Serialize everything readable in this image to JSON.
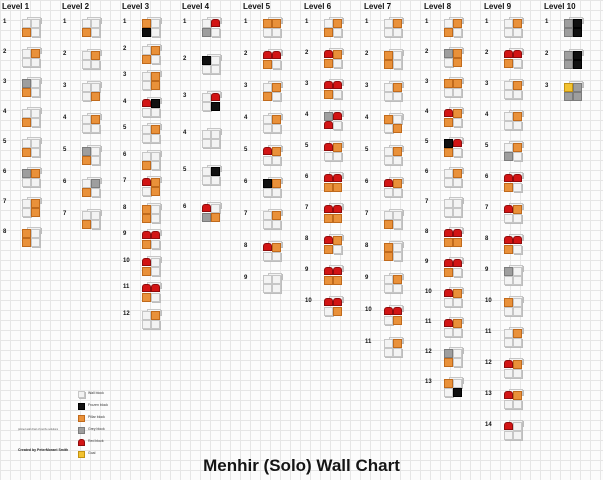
{
  "title": "Menhir (Solo) Wall Chart",
  "credit": {
    "line": "Created by PeterMorant Smith",
    "note": "printed wall chart of puzzle solutions"
  },
  "legend": [
    {
      "label": "Wall block",
      "kind": "wall",
      "color": "#f3f3f3"
    },
    {
      "label": "Frozen block",
      "kind": "frozen",
      "color": "#101010"
    },
    {
      "label": "Pillar block",
      "kind": "pillar",
      "color": "#e9913a"
    },
    {
      "label": "Grey block",
      "kind": "grey",
      "color": "#9e9e9e"
    },
    {
      "label": "Red block",
      "kind": "red",
      "color": "#d21414"
    },
    {
      "label": "Goal",
      "kind": "goal",
      "color": "#f2c230"
    }
  ],
  "levels": [
    {
      "name": "Level 1",
      "puzzles": [
        {
          "label": "1",
          "tiles": [
            "wall",
            "wall",
            "pillar",
            "wall"
          ]
        },
        {
          "label": "2",
          "tiles": [
            "wall",
            "pillar",
            "wall",
            "wall"
          ]
        },
        {
          "label": "3",
          "tiles": [
            "grey",
            "wall",
            "pillar",
            "wall"
          ]
        },
        {
          "label": "4",
          "tiles": [
            "wall",
            "wall",
            "pillar",
            "wall"
          ]
        },
        {
          "label": "5",
          "tiles": [
            "wall",
            "wall",
            "pillar",
            "wall"
          ]
        },
        {
          "label": "6",
          "tiles": [
            "grey",
            "pillar",
            "wall",
            "wall"
          ]
        },
        {
          "label": "7",
          "tiles": [
            "wall",
            "pillar",
            "wall",
            "pillar"
          ]
        },
        {
          "label": "8",
          "tiles": [
            "pillar",
            "wall",
            "pillar",
            "wall"
          ]
        }
      ]
    },
    {
      "name": "Level 2",
      "puzzles": [
        {
          "label": "1",
          "tiles": [
            "wall",
            "wall",
            "pillar",
            "wall"
          ]
        },
        {
          "label": "2",
          "tiles": [
            "wall",
            "pillar",
            "wall",
            "wall"
          ]
        },
        {
          "label": "3",
          "tiles": [
            "wall",
            "wall",
            "wall",
            "pillar"
          ]
        },
        {
          "label": "4",
          "tiles": [
            "wall",
            "pillar",
            "wall",
            "wall"
          ]
        },
        {
          "label": "5",
          "tiles": [
            "grey",
            "wall",
            "pillar",
            "wall"
          ]
        },
        {
          "label": "6",
          "tiles": [
            "wall",
            "grey",
            "pillar",
            "wall"
          ]
        },
        {
          "label": "7",
          "tiles": [
            "wall",
            "wall",
            "pillar",
            "wall"
          ]
        }
      ]
    },
    {
      "name": "Level 3",
      "puzzles": [
        {
          "label": "1",
          "tiles": [
            "pillar",
            "wall",
            "frozen",
            "wall"
          ]
        },
        {
          "label": "2",
          "tiles": [
            "wall",
            "pillar",
            "pillar",
            "wall"
          ]
        },
        {
          "label": "3",
          "tiles": [
            "wall",
            "pillar",
            "wall",
            "pillar"
          ]
        },
        {
          "label": "4",
          "tiles": [
            "red",
            "frozen",
            "wall",
            "wall"
          ]
        },
        {
          "label": "5",
          "tiles": [
            "wall",
            "pillar",
            "wall",
            "wall"
          ]
        },
        {
          "label": "6",
          "tiles": [
            "wall",
            "wall",
            "pillar",
            "wall"
          ]
        },
        {
          "label": "7",
          "tiles": [
            "red",
            "pillar",
            "wall",
            "pillar"
          ]
        },
        {
          "label": "8",
          "tiles": [
            "pillar",
            "wall",
            "pillar",
            "wall"
          ]
        },
        {
          "label": "9",
          "tiles": [
            "red",
            "red",
            "pillar",
            "wall"
          ]
        },
        {
          "label": "10",
          "tiles": [
            "red",
            "wall",
            "pillar",
            "wall"
          ]
        },
        {
          "label": "11",
          "tiles": [
            "red",
            "red",
            "pillar",
            "wall"
          ]
        },
        {
          "label": "12",
          "tiles": [
            "wall",
            "pillar",
            "wall",
            "wall"
          ]
        }
      ]
    },
    {
      "name": "Level 4",
      "puzzles": [
        {
          "label": "1",
          "tiles": [
            "wall",
            "red",
            "grey",
            "wall"
          ]
        },
        {
          "label": "2",
          "tiles": [
            "frozen",
            "wall",
            "wall",
            "wall"
          ]
        },
        {
          "label": "3",
          "tiles": [
            "wall",
            "red",
            "wall",
            "frozen"
          ]
        },
        {
          "label": "4",
          "tiles": [
            "wall",
            "wall",
            "wall",
            "wall"
          ]
        },
        {
          "label": "5",
          "tiles": [
            "wall",
            "frozen",
            "wall",
            "wall"
          ]
        },
        {
          "label": "6",
          "tiles": [
            "red",
            "wall",
            "grey",
            "pillar"
          ]
        }
      ]
    },
    {
      "name": "Level 5",
      "puzzles": [
        {
          "label": "1",
          "tiles": [
            "pillar",
            "pillar",
            "wall",
            "wall"
          ]
        },
        {
          "label": "2",
          "tiles": [
            "red",
            "red",
            "pillar",
            "wall"
          ]
        },
        {
          "label": "3",
          "tiles": [
            "wall",
            "pillar",
            "pillar",
            "wall"
          ]
        },
        {
          "label": "4",
          "tiles": [
            "wall",
            "pillar",
            "wall",
            "wall"
          ]
        },
        {
          "label": "5",
          "tiles": [
            "red",
            "pillar",
            "wall",
            "wall"
          ]
        },
        {
          "label": "6",
          "tiles": [
            "frozen",
            "pillar",
            "wall",
            "wall"
          ]
        },
        {
          "label": "7",
          "tiles": [
            "wall",
            "pillar",
            "wall",
            "wall"
          ]
        },
        {
          "label": "8",
          "tiles": [
            "red",
            "pillar",
            "wall",
            "wall"
          ]
        },
        {
          "label": "9",
          "tiles": [
            "wall",
            "wall",
            "wall",
            "wall"
          ]
        }
      ]
    },
    {
      "name": "Level 6",
      "puzzles": [
        {
          "label": "1",
          "tiles": [
            "wall",
            "pillar",
            "pillar",
            "wall"
          ]
        },
        {
          "label": "2",
          "tiles": [
            "red",
            "pillar",
            "pillar",
            "wall"
          ]
        },
        {
          "label": "3",
          "tiles": [
            "red",
            "red",
            "pillar",
            "wall"
          ]
        },
        {
          "label": "4",
          "tiles": [
            "grey",
            "red",
            "red",
            "wall"
          ]
        },
        {
          "label": "5",
          "tiles": [
            "red",
            "pillar",
            "wall",
            "wall"
          ]
        },
        {
          "label": "6",
          "tiles": [
            "red",
            "red",
            "pillar",
            "pillar"
          ]
        },
        {
          "label": "7",
          "tiles": [
            "red",
            "red",
            "pillar",
            "pillar"
          ]
        },
        {
          "label": "8",
          "tiles": [
            "red",
            "pillar",
            "pillar",
            "wall"
          ]
        },
        {
          "label": "9",
          "tiles": [
            "red",
            "red",
            "pillar",
            "pillar"
          ]
        },
        {
          "label": "10",
          "tiles": [
            "red",
            "red",
            "wall",
            "pillar"
          ]
        }
      ]
    },
    {
      "name": "Level 7",
      "puzzles": [
        {
          "label": "1",
          "tiles": [
            "wall",
            "pillar",
            "wall",
            "wall"
          ]
        },
        {
          "label": "2",
          "tiles": [
            "pillar",
            "wall",
            "pillar",
            "wall"
          ]
        },
        {
          "label": "3",
          "tiles": [
            "wall",
            "pillar",
            "wall",
            "wall"
          ]
        },
        {
          "label": "4",
          "tiles": [
            "pillar",
            "wall",
            "wall",
            "pillar"
          ]
        },
        {
          "label": "5",
          "tiles": [
            "wall",
            "pillar",
            "wall",
            "wall"
          ]
        },
        {
          "label": "6",
          "tiles": [
            "red",
            "pillar",
            "wall",
            "wall"
          ]
        },
        {
          "label": "7",
          "tiles": [
            "wall",
            "wall",
            "pillar",
            "wall"
          ]
        },
        {
          "label": "8",
          "tiles": [
            "pillar",
            "wall",
            "pillar",
            "wall"
          ]
        },
        {
          "label": "9",
          "tiles": [
            "wall",
            "pillar",
            "wall",
            "wall"
          ]
        },
        {
          "label": "10",
          "tiles": [
            "red",
            "red",
            "wall",
            "pillar"
          ]
        },
        {
          "label": "11",
          "tiles": [
            "wall",
            "pillar",
            "wall",
            "wall"
          ]
        }
      ]
    },
    {
      "name": "Level 8",
      "puzzles": [
        {
          "label": "1",
          "tiles": [
            "wall",
            "pillar",
            "pillar",
            "wall"
          ]
        },
        {
          "label": "2",
          "tiles": [
            "grey",
            "pillar",
            "wall",
            "pillar"
          ]
        },
        {
          "label": "3",
          "tiles": [
            "pillar",
            "pillar",
            "wall",
            "wall"
          ]
        },
        {
          "label": "4",
          "tiles": [
            "red",
            "pillar",
            "pillar",
            "wall"
          ]
        },
        {
          "label": "5",
          "tiles": [
            "frozen",
            "red",
            "pillar",
            "wall"
          ]
        },
        {
          "label": "6",
          "tiles": [
            "wall",
            "pillar",
            "wall",
            "wall"
          ]
        },
        {
          "label": "7",
          "tiles": [
            "wall",
            "wall",
            "wall",
            "wall"
          ]
        },
        {
          "label": "8",
          "tiles": [
            "red",
            "red",
            "pillar",
            "pillar"
          ]
        },
        {
          "label": "9",
          "tiles": [
            "red",
            "red",
            "pillar",
            "wall"
          ]
        },
        {
          "label": "10",
          "tiles": [
            "red",
            "pillar",
            "wall",
            "wall"
          ]
        },
        {
          "label": "11",
          "tiles": [
            "red",
            "pillar",
            "wall",
            "wall"
          ]
        },
        {
          "label": "12",
          "tiles": [
            "grey",
            "wall",
            "pillar",
            "wall"
          ]
        },
        {
          "label": "13",
          "tiles": [
            "pillar",
            "wall",
            "wall",
            "frozen"
          ]
        }
      ]
    },
    {
      "name": "Level 9",
      "puzzles": [
        {
          "label": "1",
          "tiles": [
            "wall",
            "pillar",
            "wall",
            "wall"
          ]
        },
        {
          "label": "2",
          "tiles": [
            "red",
            "red",
            "pillar",
            "wall"
          ]
        },
        {
          "label": "3",
          "tiles": [
            "wall",
            "pillar",
            "wall",
            "wall"
          ]
        },
        {
          "label": "4",
          "tiles": [
            "wall",
            "pillar",
            "wall",
            "wall"
          ]
        },
        {
          "label": "5",
          "tiles": [
            "wall",
            "pillar",
            "grey",
            "wall"
          ]
        },
        {
          "label": "6",
          "tiles": [
            "red",
            "red",
            "pillar",
            "wall"
          ]
        },
        {
          "label": "7",
          "tiles": [
            "red",
            "pillar",
            "wall",
            "wall"
          ]
        },
        {
          "label": "8",
          "tiles": [
            "red",
            "red",
            "pillar",
            "wall"
          ]
        },
        {
          "label": "9",
          "tiles": [
            "grey",
            "wall",
            "wall",
            "wall"
          ]
        },
        {
          "label": "10",
          "tiles": [
            "pillar",
            "wall",
            "wall",
            "wall"
          ]
        },
        {
          "label": "11",
          "tiles": [
            "wall",
            "pillar",
            "wall",
            "wall"
          ]
        },
        {
          "label": "12",
          "tiles": [
            "red",
            "pillar",
            "wall",
            "wall"
          ]
        },
        {
          "label": "13",
          "tiles": [
            "red",
            "pillar",
            "wall",
            "wall"
          ]
        },
        {
          "label": "14",
          "tiles": [
            "red",
            "wall",
            "wall",
            "wall"
          ]
        }
      ]
    },
    {
      "name": "Level 10",
      "puzzles": [
        {
          "label": "1",
          "tiles": [
            "grey",
            "frozen",
            "grey",
            "frozen"
          ]
        },
        {
          "label": "2",
          "tiles": [
            "grey",
            "frozen",
            "grey",
            "frozen"
          ]
        },
        {
          "label": "3",
          "tiles": [
            "goal",
            "grey",
            "grey",
            "grey"
          ]
        }
      ]
    }
  ]
}
